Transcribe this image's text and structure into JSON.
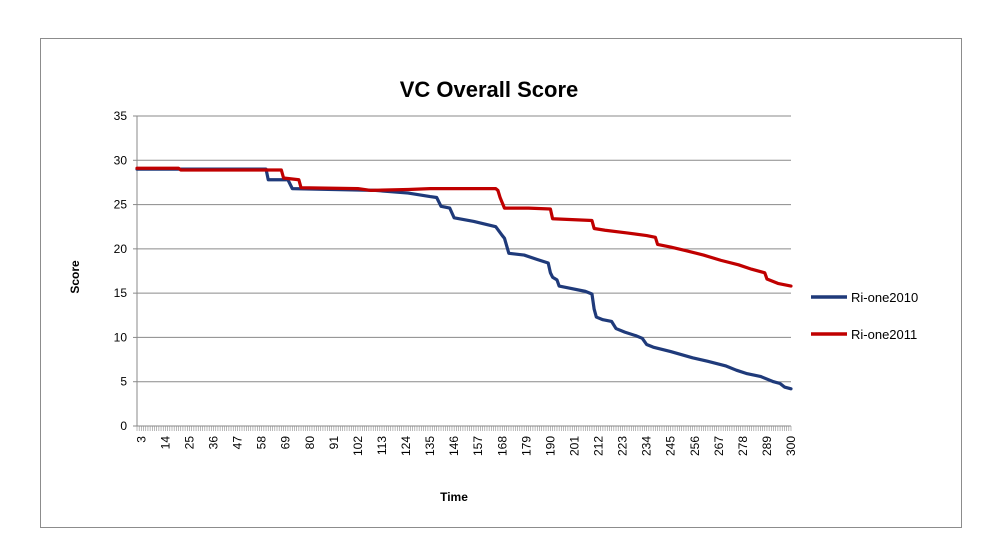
{
  "chart_data": {
    "type": "line",
    "title": "VC Overall Score",
    "xlabel": "Time",
    "ylabel": "Score",
    "ylim": [
      0,
      35
    ],
    "yticks": [
      0,
      5,
      10,
      15,
      20,
      25,
      30,
      35
    ],
    "xlim": [
      1,
      300
    ],
    "xtick_labels": [
      3,
      14,
      25,
      36,
      47,
      58,
      69,
      80,
      91,
      102,
      113,
      124,
      135,
      146,
      157,
      168,
      179,
      190,
      201,
      212,
      223,
      234,
      245,
      256,
      267,
      278,
      289,
      300
    ],
    "grid": true,
    "legend_position": "right",
    "series": [
      {
        "name": "Ri-one2010",
        "color": "#1f3a7a",
        "points": [
          [
            1,
            29
          ],
          [
            60,
            29
          ],
          [
            61,
            27.8
          ],
          [
            70,
            27.8
          ],
          [
            72,
            26.8
          ],
          [
            110,
            26.6
          ],
          [
            125,
            26.3
          ],
          [
            135,
            25.9
          ],
          [
            138,
            25.8
          ],
          [
            140,
            24.8
          ],
          [
            144,
            24.6
          ],
          [
            146,
            23.5
          ],
          [
            155,
            23.1
          ],
          [
            165,
            22.5
          ],
          [
            168,
            21.5
          ],
          [
            169,
            21.2
          ],
          [
            171,
            19.5
          ],
          [
            178,
            19.3
          ],
          [
            184,
            18.8
          ],
          [
            189,
            18.4
          ],
          [
            190,
            17.3
          ],
          [
            191,
            16.8
          ],
          [
            193,
            16.5
          ],
          [
            194,
            15.8
          ],
          [
            198,
            15.6
          ],
          [
            206,
            15.2
          ],
          [
            209,
            14.9
          ],
          [
            210,
            13.2
          ],
          [
            211,
            12.3
          ],
          [
            214,
            12.0
          ],
          [
            218,
            11.8
          ],
          [
            220,
            11.0
          ],
          [
            224,
            10.6
          ],
          [
            229,
            10.2
          ],
          [
            232,
            9.9
          ],
          [
            234,
            9.2
          ],
          [
            237,
            8.9
          ],
          [
            245,
            8.4
          ],
          [
            255,
            7.7
          ],
          [
            262,
            7.3
          ],
          [
            270,
            6.8
          ],
          [
            275,
            6.3
          ],
          [
            280,
            5.9
          ],
          [
            286,
            5.6
          ],
          [
            292,
            5.0
          ],
          [
            295,
            4.8
          ],
          [
            297,
            4.4
          ],
          [
            300,
            4.2
          ]
        ]
      },
      {
        "name": "Ri-one2011",
        "color": "#c00000",
        "points": [
          [
            1,
            29.1
          ],
          [
            20,
            29.1
          ],
          [
            21,
            28.9
          ],
          [
            67,
            28.9
          ],
          [
            68,
            28.0
          ],
          [
            75,
            27.8
          ],
          [
            76,
            26.9
          ],
          [
            102,
            26.8
          ],
          [
            108,
            26.6
          ],
          [
            125,
            26.7
          ],
          [
            135,
            26.8
          ],
          [
            165,
            26.8
          ],
          [
            166,
            26.6
          ],
          [
            167,
            25.8
          ],
          [
            169,
            24.6
          ],
          [
            180,
            24.6
          ],
          [
            190,
            24.5
          ],
          [
            191,
            23.4
          ],
          [
            200,
            23.3
          ],
          [
            209,
            23.2
          ],
          [
            210,
            22.3
          ],
          [
            215,
            22.1
          ],
          [
            225,
            21.8
          ],
          [
            234,
            21.5
          ],
          [
            238,
            21.3
          ],
          [
            239,
            20.5
          ],
          [
            245,
            20.2
          ],
          [
            252,
            19.8
          ],
          [
            260,
            19.3
          ],
          [
            268,
            18.7
          ],
          [
            276,
            18.2
          ],
          [
            282,
            17.7
          ],
          [
            288,
            17.3
          ],
          [
            289,
            16.6
          ],
          [
            294,
            16.1
          ],
          [
            300,
            15.8
          ]
        ]
      }
    ]
  }
}
